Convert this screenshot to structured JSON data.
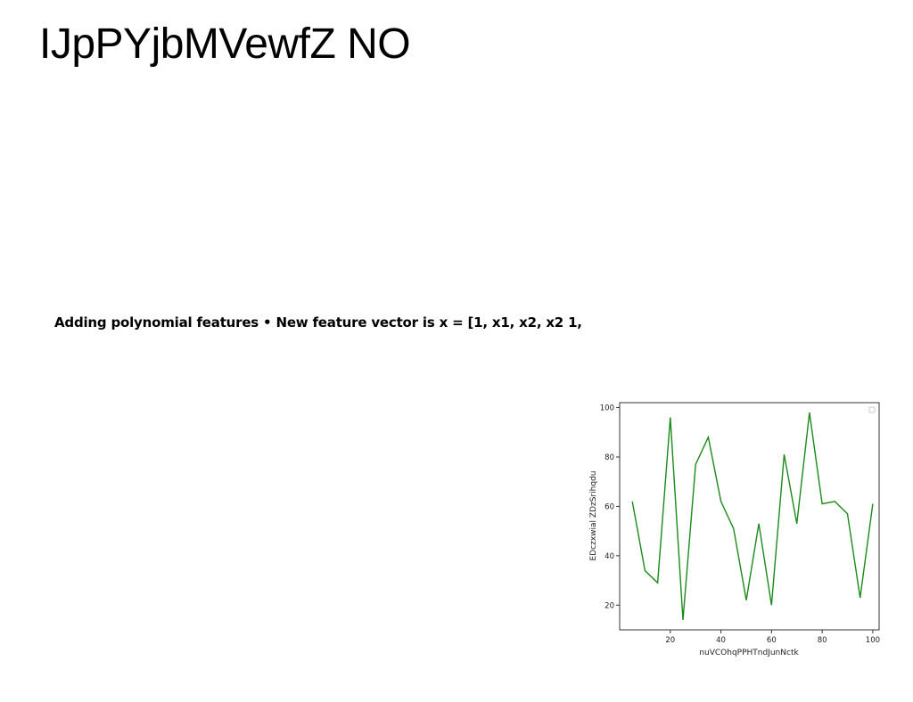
{
  "slide": {
    "title": "IJpPYjbMVewfZ NO",
    "bullet": "Adding polynomial features • New feature vector is x = [1, x1, x2, x2 1,"
  },
  "chart_data": {
    "type": "line",
    "xlabel": "nuVCOhqPPHTndJunNctk",
    "ylabel": "EDczxwial ZDzSrihqdu",
    "xlim": [
      0,
      102.5
    ],
    "ylim": [
      10,
      102
    ],
    "xticks": [
      20,
      40,
      60,
      80,
      100
    ],
    "yticks": [
      20,
      40,
      60,
      80,
      100
    ],
    "grid": false,
    "legend": "top-right",
    "series": [
      {
        "color": "#1a8a1a",
        "x": [
          5,
          10,
          15,
          20,
          25,
          30,
          35,
          40,
          45,
          50,
          55,
          60,
          65,
          70,
          75,
          80,
          85,
          90,
          95,
          100
        ],
        "y": [
          62,
          34,
          29,
          96,
          14,
          77,
          88,
          62,
          51,
          22,
          53,
          20,
          81,
          53,
          98,
          61,
          62,
          57,
          23,
          61
        ]
      }
    ]
  }
}
